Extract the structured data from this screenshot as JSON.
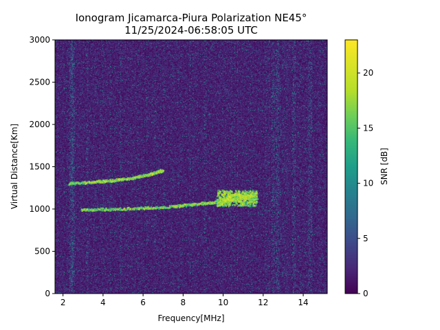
{
  "chart_data": {
    "type": "heatmap",
    "title_line1": "Ionogram Jicamarca-Piura Polarization NE45°",
    "title_line2": "11/25/2024-06:58:05 UTC",
    "xlabel": "Frequency[MHz]",
    "ylabel": "Virtual Distance[Km]",
    "colorbar_label": "SNR [dB]",
    "xlim": [
      1.6,
      15.2
    ],
    "ylim": [
      0,
      3000
    ],
    "clim": [
      0,
      23
    ],
    "colormap": "viridis",
    "x_ticks": [
      2,
      4,
      6,
      8,
      10,
      12,
      14
    ],
    "y_ticks": [
      0,
      500,
      1000,
      1500,
      2000,
      2500,
      3000
    ],
    "colorbar_ticks": [
      0,
      5,
      10,
      15,
      20
    ],
    "traces": [
      {
        "points": [
          [
            2.9,
            990
          ],
          [
            4.5,
            1000
          ],
          [
            6.0,
            1010
          ],
          [
            7.5,
            1030
          ],
          [
            8.5,
            1055
          ],
          [
            9.5,
            1080
          ],
          [
            10.5,
            1110
          ],
          [
            11.5,
            1150
          ]
        ]
      },
      {
        "points": [
          [
            2.3,
            1300
          ],
          [
            3.5,
            1320
          ],
          [
            4.5,
            1340
          ],
          [
            5.5,
            1370
          ],
          [
            6.3,
            1410
          ],
          [
            7.0,
            1460
          ]
        ]
      },
      {
        "points": [
          [
            9.8,
            1050
          ],
          [
            10.2,
            1120
          ],
          [
            10.6,
            1180
          ],
          [
            11.0,
            1150
          ],
          [
            11.6,
            1160
          ]
        ]
      }
    ],
    "vertical_bands_mhz": [
      2.4,
      2.5,
      12.5,
      12.7,
      13.5,
      14.3
    ]
  }
}
